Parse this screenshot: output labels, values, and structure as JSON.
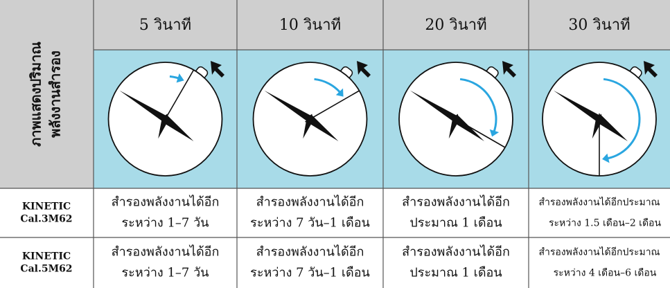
{
  "side_label": [
    "ภาพแสดงปริมาณ",
    "พลังงานสำรอง"
  ],
  "header": [
    "5 วินาที",
    "10 วินาที",
    "20 วินาที",
    "30 วินาที"
  ],
  "rows": [
    {
      "label": [
        "KINETIC",
        "Cal.3M62"
      ],
      "cells": [
        [
          "สำรองพลังงานได้อีก",
          "ระหว่าง 1–7 วัน"
        ],
        [
          "สำรองพลังงานได้อีก",
          "ระหว่าง 7 วัน–1 เดือน"
        ],
        [
          "สำรองพลังงานได้อีก",
          "ประมาณ 1 เดือน"
        ],
        [
          "สำรองพลังงานได้อีกประมาณ",
          "ระหว่าง 1.5 เดือน–2 เดือน"
        ]
      ]
    },
    {
      "label": [
        "KINETIC",
        "Cal.5M62"
      ],
      "cells": [
        [
          "สำรองพลังงานได้อีก",
          "ระหว่าง 1–7 วัน"
        ],
        [
          "สำรองพลังงานได้อีก",
          "ระหว่าง 7 วัน–1 เดือน"
        ],
        [
          "สำรองพลังงานได้อีก",
          "ประมาณ 1 เดือน"
        ],
        [
          "สำรองพลังงานได้อีกประมาณ",
          "ระหว่าง 4 เดือน–6 เดือน"
        ]
      ]
    }
  ]
}
